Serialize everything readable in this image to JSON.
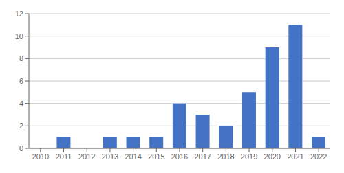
{
  "chart_data": {
    "type": "bar",
    "categories": [
      "2010",
      "2011",
      "2012",
      "2013",
      "2014",
      "2015",
      "2016",
      "2017",
      "2018",
      "2019",
      "2020",
      "2021",
      "2022"
    ],
    "values": [
      0,
      1,
      0,
      1,
      1,
      1,
      4,
      3,
      2,
      5,
      9,
      11,
      1
    ],
    "color": "#4472C4",
    "ylim": [
      0,
      12
    ],
    "yticks": [
      0,
      2,
      4,
      6,
      8,
      10,
      12
    ],
    "grid": true
  }
}
